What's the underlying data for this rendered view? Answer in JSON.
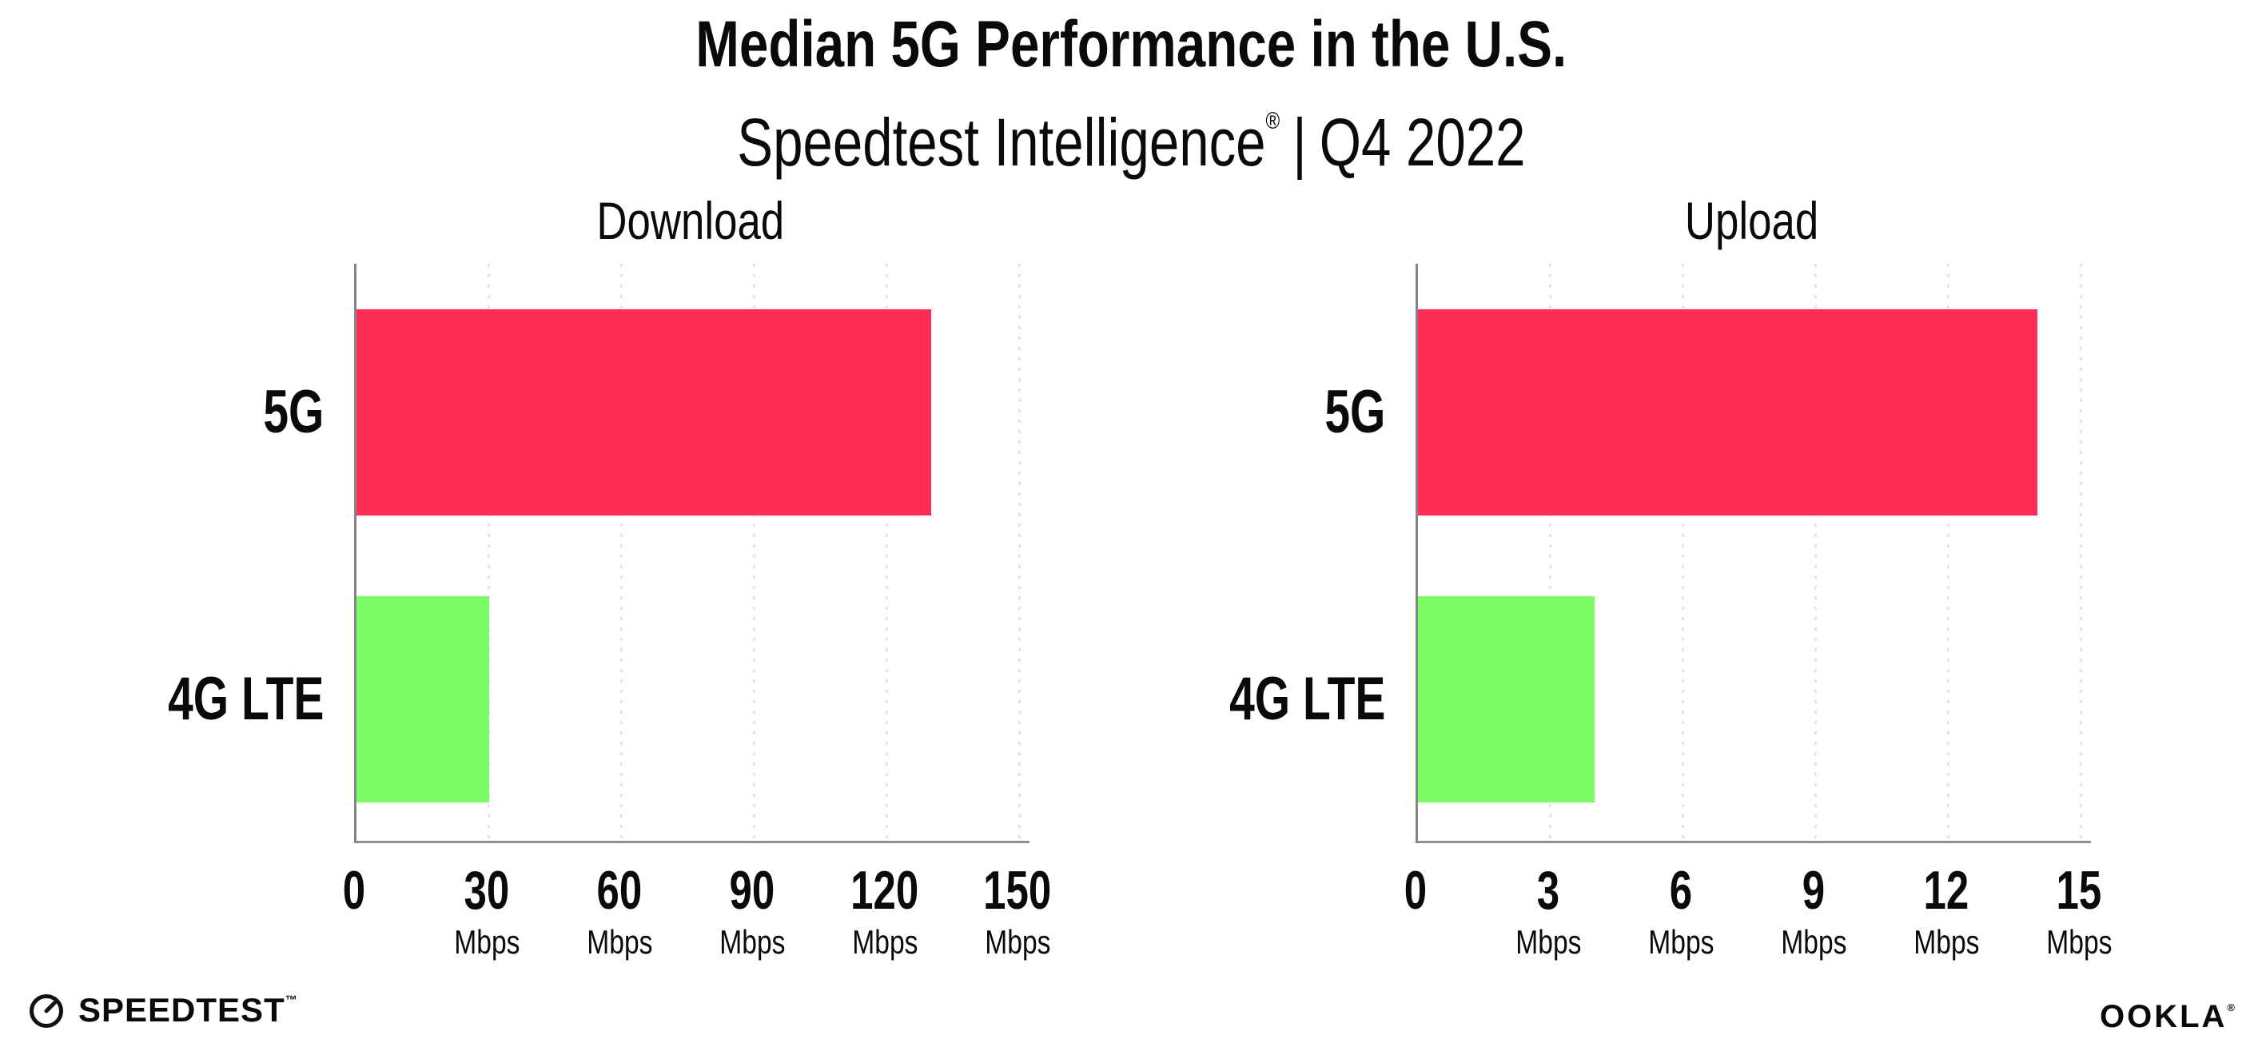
{
  "header": {
    "title": "Median 5G Performance in the U.S.",
    "subtitle_brand": "Speedtest Intelligence",
    "subtitle_reg": "®",
    "subtitle_sep": "|",
    "subtitle_period": "Q4 2022"
  },
  "footer": {
    "speedtest_label": "SPEEDTEST",
    "speedtest_tm": "™",
    "ookla_label": "OOKLA",
    "ookla_reg": "®"
  },
  "colors": {
    "bar_5g": "#FD2D56",
    "bar_4g": "#7EFC66",
    "gridline": "#E4E4EF",
    "axis_x": "#8E8E93",
    "axis_y": "#85858C",
    "text": "#0A0A0A"
  },
  "chart_data": [
    {
      "type": "bar",
      "orientation": "horizontal",
      "title": "Download",
      "categories": [
        "5G",
        "4G LTE"
      ],
      "values": [
        130,
        30
      ],
      "unit": "Mbps",
      "xlabel": "",
      "ylabel": "",
      "xlim": [
        0,
        150
      ],
      "xticks": [
        0,
        30,
        60,
        90,
        120,
        150
      ],
      "grid": "vertical-dotted",
      "legend": "none"
    },
    {
      "type": "bar",
      "orientation": "horizontal",
      "title": "Upload",
      "categories": [
        "5G",
        "4G LTE"
      ],
      "values": [
        14,
        4
      ],
      "unit": "Mbps",
      "xlabel": "",
      "ylabel": "",
      "xlim": [
        0,
        15
      ],
      "xticks": [
        0,
        3,
        6,
        9,
        12,
        15
      ],
      "grid": "vertical-dotted",
      "legend": "none"
    }
  ]
}
